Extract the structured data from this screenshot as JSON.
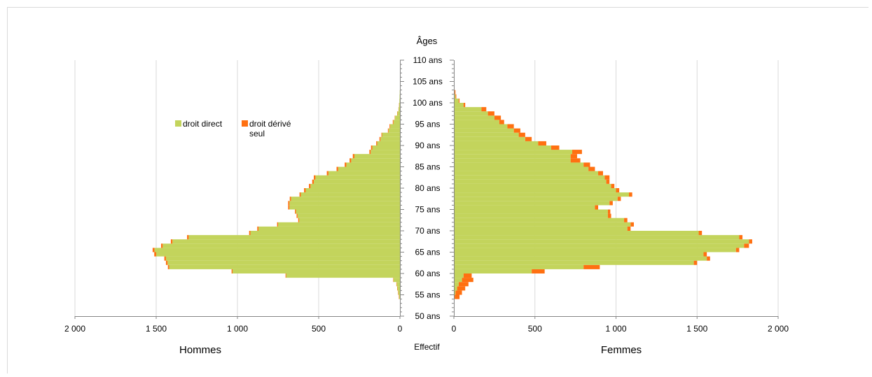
{
  "chart_data": {
    "type": "population-pyramid",
    "y_axis_title": "Âges",
    "x_axis_title": "Effectif",
    "left_label": "Hommes",
    "right_label": "Femmes",
    "xlim": [
      0,
      2000
    ],
    "x_ticks": [
      "2 000",
      "1 500",
      "1 000",
      "500",
      "0"
    ],
    "age_range": [
      50,
      110
    ],
    "age_ticks": [
      "50 ans",
      "55 ans",
      "60 ans",
      "65 ans",
      "70 ans",
      "75 ans",
      "80 ans",
      "85 ans",
      "90 ans",
      "95 ans",
      "100 ans",
      "105 ans",
      "110 ans"
    ],
    "legend": [
      {
        "label": "droit direct",
        "color": "#c3d45c"
      },
      {
        "label": "droit dérivé seul",
        "color": "#ff7011"
      }
    ],
    "ages": [
      54,
      55,
      56,
      57,
      58,
      59,
      60,
      61,
      62,
      63,
      64,
      65,
      66,
      67,
      68,
      69,
      70,
      71,
      72,
      73,
      74,
      75,
      76,
      77,
      78,
      79,
      80,
      81,
      82,
      83,
      84,
      85,
      86,
      87,
      88,
      89,
      90,
      91,
      92,
      93,
      94,
      95,
      96,
      97,
      98,
      99,
      100,
      101,
      102
    ],
    "hommes_direct": [
      5,
      10,
      15,
      20,
      40,
      700,
      1030,
      1420,
      1430,
      1440,
      1500,
      1510,
      1460,
      1400,
      1300,
      920,
      870,
      750,
      620,
      630,
      640,
      680,
      680,
      670,
      610,
      580,
      550,
      530,
      520,
      440,
      380,
      330,
      300,
      280,
      180,
      170,
      140,
      120,
      110,
      70,
      60,
      40,
      30,
      15,
      8,
      5,
      3,
      2,
      1
    ],
    "hommes_derive": [
      2,
      2,
      2,
      2,
      2,
      4,
      6,
      8,
      10,
      10,
      12,
      12,
      10,
      10,
      10,
      8,
      8,
      6,
      6,
      6,
      6,
      8,
      8,
      8,
      8,
      10,
      10,
      10,
      10,
      10,
      10,
      10,
      10,
      10,
      8,
      8,
      6,
      6,
      4,
      4,
      4,
      4,
      2,
      2,
      1,
      1,
      0,
      0,
      0
    ],
    "femmes_direct": [
      5,
      10,
      20,
      30,
      50,
      60,
      480,
      800,
      1480,
      1560,
      1540,
      1740,
      1790,
      1820,
      1760,
      1510,
      1070,
      1090,
      1050,
      950,
      950,
      870,
      960,
      1010,
      1080,
      1000,
      970,
      940,
      930,
      890,
      830,
      800,
      720,
      720,
      730,
      600,
      520,
      440,
      400,
      370,
      330,
      280,
      250,
      210,
      170,
      60,
      30,
      10,
      5
    ],
    "femmes_derive": [
      30,
      40,
      50,
      60,
      70,
      50,
      80,
      100,
      20,
      20,
      20,
      20,
      30,
      20,
      20,
      20,
      20,
      20,
      20,
      20,
      15,
      20,
      20,
      20,
      20,
      20,
      20,
      20,
      30,
      30,
      40,
      40,
      60,
      40,
      60,
      50,
      50,
      40,
      40,
      40,
      40,
      30,
      40,
      40,
      30,
      10,
      5,
      5,
      5
    ]
  }
}
